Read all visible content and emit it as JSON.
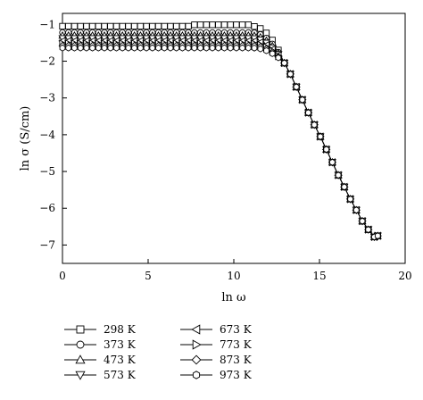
{
  "chart_data": {
    "type": "line",
    "title": "",
    "xlabel": "ln ω",
    "ylabel": "ln σ (S/cm)",
    "xlim": [
      0,
      20
    ],
    "ylim": [
      -7.5,
      -0.7
    ],
    "xticks": [
      0,
      5,
      10,
      15,
      20
    ],
    "yticks": [
      -1,
      -2,
      -3,
      -4,
      -5,
      -6,
      -7
    ],
    "tick_labels_x": [
      "0",
      "5",
      "10",
      "15",
      "20"
    ],
    "tick_labels_y": [
      "−1",
      "−2",
      "−3",
      "−4",
      "−5",
      "−6",
      "−7"
    ],
    "grid": false,
    "legend_position": "bottom",
    "series": [
      {
        "name": "298 K",
        "marker": "square",
        "plateau": -1.05,
        "knee": 12.3,
        "bump": 0.04
      },
      {
        "name": "373 K",
        "marker": "circle",
        "plateau": -1.22,
        "knee": 12.35,
        "bump": 0.0
      },
      {
        "name": "473 K",
        "marker": "triangle-up",
        "plateau": -1.3,
        "knee": 12.4,
        "bump": 0.0
      },
      {
        "name": "573 K",
        "marker": "triangle-down",
        "plateau": -1.38,
        "knee": 12.45,
        "bump": 0.0
      },
      {
        "name": "673 K",
        "marker": "triangle-left",
        "plateau": -1.45,
        "knee": 12.5,
        "bump": 0.0
      },
      {
        "name": "773 K",
        "marker": "triangle-right",
        "plateau": -1.52,
        "knee": 12.55,
        "bump": 0.0
      },
      {
        "name": "873 K",
        "marker": "diamond",
        "plateau": -1.58,
        "knee": 12.6,
        "bump": 0.0
      },
      {
        "name": "973 K",
        "marker": "hexagon",
        "plateau": -1.64,
        "knee": 12.65,
        "bump": 0.0
      }
    ],
    "x_values": [
      0.0,
      0.35,
      0.7,
      1.05,
      1.4,
      1.75,
      2.1,
      2.45,
      2.8,
      3.15,
      3.5,
      3.85,
      4.2,
      4.55,
      4.9,
      5.25,
      5.6,
      5.95,
      6.3,
      6.65,
      7.0,
      7.35,
      7.7,
      8.05,
      8.4,
      8.75,
      9.1,
      9.45,
      9.8,
      10.15,
      10.5,
      10.85,
      11.2,
      11.55,
      11.9,
      12.25,
      12.6,
      12.95,
      13.3,
      13.65,
      14.0,
      14.35,
      14.7,
      15.05,
      15.4,
      15.75,
      16.1,
      16.45,
      16.8,
      17.15,
      17.5,
      17.85,
      18.2,
      18.4
    ],
    "tail": {
      "x": [
        12.95,
        13.3,
        13.65,
        14.0,
        14.35,
        14.7,
        15.05,
        15.4,
        15.75,
        16.1,
        16.45,
        16.8,
        17.15,
        17.5,
        17.85,
        18.2,
        18.4
      ],
      "y": [
        -2.05,
        -2.35,
        -2.7,
        -3.05,
        -3.4,
        -3.73,
        -4.05,
        -4.4,
        -4.75,
        -5.1,
        -5.42,
        -5.75,
        -6.05,
        -6.35,
        -6.58,
        -6.78,
        -6.75
      ]
    }
  },
  "legend": {
    "left": [
      "298 K",
      "373 K",
      "473 K",
      "573 K"
    ],
    "right": [
      "673 K",
      "773 K",
      "873 K",
      "973 K"
    ]
  }
}
